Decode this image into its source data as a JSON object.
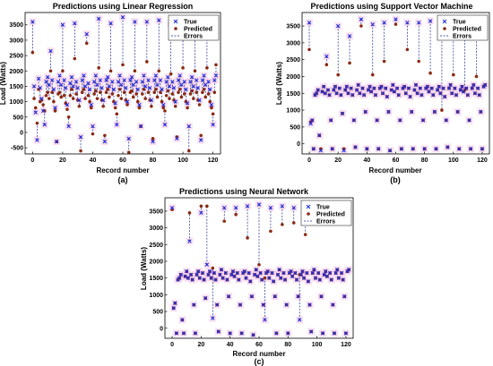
{
  "colors": {
    "true": "#1f2fd8",
    "predicted": "#8a2a12",
    "errors": "#1a2a8a",
    "halo": "#f6c8e6",
    "axis": "#000000"
  },
  "chart_data": [
    {
      "type": "scatter",
      "title": "Predictions using Linear Regression",
      "xlabel": "Record number",
      "ylabel": "Load (Watts)",
      "caption": "(a)",
      "xlim": [
        -5,
        125
      ],
      "ylim": [
        -700,
        3900
      ],
      "xticks": [
        "0",
        "20",
        "40",
        "60",
        "80",
        "100",
        "120"
      ],
      "yticks": [
        "-500",
        "0",
        "500",
        "1000",
        "1500",
        "2000",
        "2500",
        "3000",
        "3500"
      ],
      "legend": [
        "True",
        "Predicted",
        "Errors"
      ],
      "legend_position": "top-right",
      "grid": false,
      "series": [
        {
          "name": "True",
          "y": [
            3600,
            1500,
            650,
            -250,
            1750,
            1450,
            1100,
            700,
            250,
            1650,
            1800,
            1550,
            2650,
            1700,
            1400,
            800,
            -300,
            1650,
            1850,
            1550,
            3500,
            1700,
            1450,
            900,
            200,
            1600,
            1800,
            1500,
            3550,
            1650,
            1450,
            1050,
            -150,
            1700,
            1850,
            1500,
            3200,
            1600,
            1400,
            900,
            200,
            1650,
            1850,
            1550,
            3700,
            1700,
            1450,
            1050,
            -300,
            1700,
            1800,
            1500,
            3550,
            1650,
            1400,
            950,
            250,
            1650,
            1850,
            1550,
            3750,
            1700,
            1450,
            1000,
            -200,
            1700,
            1800,
            1550,
            3600,
            1650,
            1400,
            900,
            200,
            1650,
            1850,
            1500,
            3600,
            1700,
            1450,
            1050,
            -300,
            1700,
            1850,
            1550,
            3650,
            1700,
            1400,
            900,
            250,
            1650,
            1800,
            1500,
            3550,
            1650,
            1450,
            1000,
            -200,
            1700,
            1850,
            1550,
            3600,
            1650,
            1400,
            950,
            200,
            1650,
            1800,
            1500,
            3700,
            1700,
            1450,
            1050,
            -250,
            1700,
            1850,
            1550,
            3650,
            1650,
            1400,
            900,
            250,
            1700,
            1850
          ]
        },
        {
          "name": "Predicted",
          "y": [
            2600,
            1100,
            800,
            300,
            1400,
            1000,
            1050,
            900,
            700,
            1200,
            1300,
            1100,
            2000,
            1300,
            1000,
            700,
            -300,
            1250,
            1300,
            1150,
            2000,
            1200,
            950,
            750,
            500,
            1200,
            1400,
            1100,
            2400,
            1250,
            1050,
            850,
            -600,
            1300,
            1400,
            1100,
            2900,
            1200,
            1000,
            800,
            -50,
            1250,
            1350,
            1100,
            2100,
            1300,
            1050,
            850,
            -100,
            1300,
            1400,
            1150,
            2000,
            1250,
            1000,
            800,
            600,
            1200,
            1400,
            1100,
            2200,
            1300,
            1050,
            900,
            -650,
            1300,
            1350,
            1150,
            2000,
            1250,
            1000,
            800,
            200,
            1250,
            1400,
            1100,
            2300,
            1300,
            1050,
            850,
            -200,
            1300,
            1400,
            1150,
            2000,
            1300,
            1000,
            800,
            700,
            1200,
            1350,
            1100,
            1900,
            1250,
            1050,
            850,
            -150,
            1300,
            1400,
            1150,
            2100,
            1250,
            1000,
            800,
            -600,
            1250,
            1350,
            1100,
            2000,
            1300,
            1050,
            900,
            -100,
            1300,
            1400,
            1150,
            2100,
            1250,
            1000,
            800,
            600,
            1300,
            2200
          ]
        }
      ]
    },
    {
      "type": "scatter",
      "title": "Predictions using Support Vector Machine",
      "xlabel": "Record number",
      "ylabel": "Load (Watts)",
      "caption": "(b)",
      "xlim": [
        -5,
        125
      ],
      "ylim": [
        -300,
        3900
      ],
      "xticks": [
        "0",
        "20",
        "40",
        "60",
        "80",
        "100",
        "120"
      ],
      "yticks": [
        "0",
        "500",
        "1000",
        "1500",
        "2000",
        "2500",
        "3000",
        "3500"
      ],
      "legend": [
        "True",
        "Predicted",
        "Errors"
      ],
      "legend_position": "top-right",
      "grid": false,
      "series": [
        {
          "name": "True",
          "y": [
            3600,
            600,
            700,
            -150,
            1450,
            1500,
            1600,
            250,
            -200,
            1550,
            1700,
            1500,
            2600,
            1600,
            1450,
            700,
            -150,
            1600,
            1700,
            1500,
            3500,
            1650,
            1450,
            900,
            -200,
            1600,
            1700,
            1500,
            3200,
            1650,
            1450,
            700,
            -100,
            1600,
            1750,
            1500,
            3700,
            1650,
            1450,
            950,
            -150,
            1600,
            1700,
            1550,
            3550,
            1650,
            1450,
            700,
            -150,
            1650,
            1700,
            1500,
            3600,
            1650,
            1400,
            950,
            -200,
            1600,
            1750,
            1550,
            3700,
            1650,
            1450,
            700,
            -150,
            1650,
            1700,
            1500,
            3600,
            1650,
            1400,
            950,
            -150,
            1600,
            1750,
            1500,
            3600,
            1650,
            1450,
            700,
            -150,
            1650,
            1700,
            1550,
            3650,
            1650,
            1450,
            950,
            -150,
            1600,
            1700,
            1500,
            3600,
            1650,
            1400,
            700,
            -100,
            1650,
            1750,
            1500,
            3600,
            1650,
            1450,
            950,
            -150,
            1600,
            1700,
            1550,
            3650,
            1650,
            1450,
            700,
            -150,
            1650,
            1750,
            1500,
            3600,
            1650,
            1450,
            950,
            -150,
            1700,
            1750
          ]
        },
        {
          "name": "Predicted",
          "y": [
            2800,
            650,
            700,
            -150,
            1450,
            1500,
            1600,
            250,
            -150,
            1550,
            1700,
            1500,
            2350,
            1600,
            1450,
            700,
            -150,
            1600,
            1700,
            1500,
            2050,
            1650,
            1450,
            900,
            -150,
            1600,
            1700,
            1500,
            2400,
            1650,
            1450,
            700,
            -100,
            1600,
            1750,
            1500,
            3500,
            1650,
            1450,
            950,
            -150,
            1600,
            1700,
            1550,
            2050,
            1650,
            1450,
            700,
            -150,
            1650,
            1700,
            1500,
            2450,
            1650,
            1400,
            950,
            -200,
            1600,
            1750,
            1550,
            3550,
            1650,
            1450,
            700,
            -150,
            1650,
            1700,
            1500,
            2800,
            1650,
            1400,
            950,
            -150,
            1600,
            1750,
            1500,
            2450,
            1650,
            1450,
            700,
            -150,
            1650,
            1700,
            1550,
            2100,
            1650,
            1450,
            950,
            -150,
            1600,
            1700,
            1500,
            1000,
            1650,
            1400,
            700,
            -100,
            1650,
            1750,
            1500,
            2050,
            1650,
            1450,
            950,
            -150,
            1600,
            1700,
            1550,
            1600,
            1650,
            1450,
            700,
            -150,
            1650,
            1750,
            1500,
            2000,
            1650,
            1450,
            950,
            -150,
            1700,
            1750
          ]
        }
      ]
    },
    {
      "type": "scatter",
      "title": "Predictions using Neural Network",
      "xlabel": "Record number",
      "ylabel": "Load (Watts)",
      "caption": "(c)",
      "xlim": [
        -5,
        125
      ],
      "ylim": [
        -300,
        3900
      ],
      "xticks": [
        "0",
        "20",
        "40",
        "60",
        "80",
        "100",
        "120"
      ],
      "yticks": [
        "0",
        "500",
        "1000",
        "1500",
        "2000",
        "2500",
        "3000",
        "3500"
      ],
      "legend": [
        "True",
        "Predicted",
        "Errors"
      ],
      "legend_position": "top-right",
      "grid": false,
      "series": [
        {
          "name": "True",
          "y": [
            3600,
            600,
            750,
            -150,
            1450,
            1500,
            1600,
            250,
            -150,
            1550,
            1700,
            1500,
            2600,
            1600,
            1450,
            700,
            -150,
            1600,
            1700,
            1500,
            3450,
            1650,
            1450,
            900,
            1900,
            1600,
            1700,
            1500,
            300,
            1650,
            1450,
            700,
            -100,
            1600,
            1750,
            1500,
            3600,
            1650,
            1450,
            950,
            -150,
            1600,
            1700,
            1550,
            3600,
            1650,
            1450,
            700,
            -150,
            1650,
            1700,
            1500,
            3650,
            1650,
            1400,
            950,
            -200,
            1600,
            1750,
            1550,
            3700,
            1650,
            1450,
            700,
            250,
            1650,
            1700,
            1500,
            3600,
            1650,
            1400,
            950,
            -150,
            1600,
            1750,
            1500,
            3650,
            1650,
            1450,
            700,
            -150,
            1650,
            1700,
            1550,
            3600,
            1650,
            1450,
            950,
            250,
            1600,
            1700,
            1500,
            3600,
            1650,
            1400,
            700,
            -100,
            1650,
            1750,
            1500,
            3650,
            1650,
            1450,
            950,
            -150,
            1600,
            1700,
            1550,
            3600,
            1650,
            1450,
            700,
            -150,
            1650,
            1750,
            1500,
            3600,
            1650,
            1450,
            950,
            -150,
            1700,
            1750
          ]
        },
        {
          "name": "Predicted",
          "y": [
            3550,
            600,
            750,
            -150,
            1450,
            1500,
            1600,
            250,
            -150,
            1550,
            1700,
            1500,
            3450,
            1600,
            1450,
            700,
            -150,
            1600,
            1700,
            1500,
            3650,
            1650,
            1450,
            900,
            3650,
            1600,
            1700,
            1500,
            1800,
            1650,
            1450,
            700,
            -100,
            1600,
            1750,
            1500,
            3200,
            1650,
            1450,
            950,
            -150,
            1600,
            1700,
            1550,
            3400,
            1650,
            1450,
            700,
            -150,
            1650,
            1700,
            1500,
            2700,
            1650,
            1400,
            950,
            -200,
            1600,
            1750,
            1550,
            1900,
            1650,
            1450,
            700,
            1500,
            1650,
            1700,
            1500,
            2900,
            1650,
            1400,
            950,
            -150,
            1600,
            1750,
            1500,
            3100,
            1650,
            1450,
            700,
            -150,
            1650,
            1700,
            1550,
            3150,
            1650,
            1450,
            950,
            1600,
            1600,
            1700,
            1500,
            2800,
            1650,
            1400,
            700,
            -100,
            1650,
            1750,
            1500,
            3600,
            1650,
            1450,
            950,
            -150,
            1600,
            1700,
            1550,
            3500,
            1650,
            1450,
            700,
            -150,
            1650,
            1750,
            1500,
            3550,
            1650,
            1450,
            950,
            -150,
            1700,
            1750
          ]
        }
      ]
    }
  ]
}
